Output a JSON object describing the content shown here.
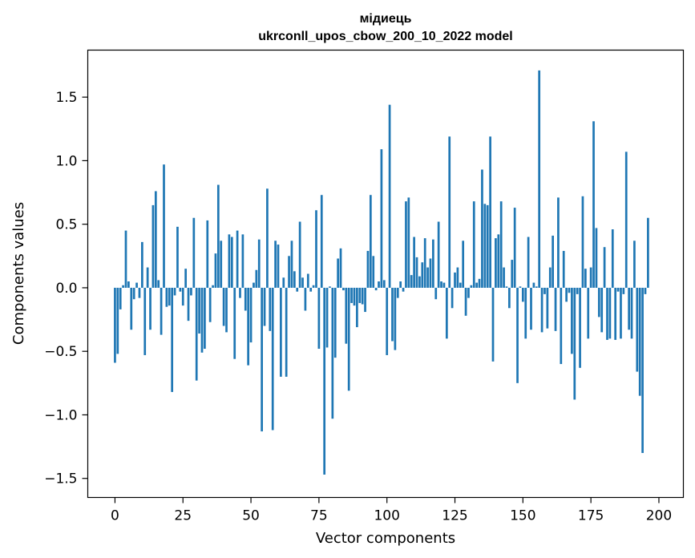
{
  "chart_data": {
    "type": "bar",
    "title": "мідиець",
    "subtitle": "ukrconll_upos_cbow_200_10_2022 model",
    "xlabel": "Vector components",
    "ylabel": "Components values",
    "xlim": [
      -10,
      209
    ],
    "ylim": [
      -1.65,
      1.87
    ],
    "xticks": [
      0,
      25,
      50,
      75,
      100,
      125,
      150,
      175,
      200
    ],
    "yticks": [
      -1.5,
      -1.0,
      -0.5,
      0.0,
      0.5,
      1.0,
      1.5
    ],
    "ytick_labels": [
      "−1.5",
      "−1.0",
      "−0.5",
      "0.0",
      "0.5",
      "1.0",
      "1.5"
    ],
    "bar_color": "#1f77b4",
    "values": [
      -0.59,
      -0.52,
      -0.17,
      0.02,
      0.45,
      0.05,
      -0.33,
      -0.09,
      0.04,
      -0.08,
      0.36,
      -0.53,
      0.16,
      -0.33,
      0.65,
      0.76,
      0.06,
      -0.37,
      0.97,
      -0.15,
      -0.14,
      -0.82,
      -0.06,
      0.48,
      -0.03,
      -0.14,
      0.15,
      -0.26,
      -0.06,
      0.55,
      -0.73,
      -0.36,
      -0.51,
      -0.48,
      0.53,
      -0.27,
      0.02,
      0.27,
      0.81,
      0.37,
      -0.3,
      -0.35,
      0.42,
      0.4,
      -0.56,
      0.45,
      -0.08,
      0.42,
      -0.18,
      -0.61,
      -0.43,
      0.04,
      0.14,
      0.38,
      -1.13,
      -0.3,
      0.78,
      -0.34,
      -1.12,
      0.37,
      0.34,
      -0.7,
      0.08,
      -0.7,
      0.25,
      0.37,
      0.13,
      -0.03,
      0.52,
      0.08,
      -0.18,
      0.11,
      -0.03,
      0.02,
      0.61,
      -0.48,
      0.73,
      -1.47,
      -0.47,
      0.01,
      -1.03,
      -0.55,
      0.23,
      0.31,
      -0.02,
      -0.44,
      -0.81,
      -0.12,
      -0.14,
      -0.31,
      -0.12,
      -0.13,
      -0.19,
      0.29,
      0.73,
      0.25,
      -0.02,
      0.05,
      1.09,
      0.06,
      -0.53,
      1.44,
      -0.42,
      -0.49,
      -0.08,
      0.05,
      -0.03,
      0.68,
      0.71,
      0.1,
      0.4,
      0.24,
      0.09,
      0.2,
      0.39,
      0.16,
      0.23,
      0.38,
      -0.09,
      0.52,
      0.05,
      0.04,
      -0.4,
      1.19,
      -0.16,
      0.12,
      0.16,
      0.04,
      0.37,
      -0.22,
      -0.08,
      0.02,
      0.68,
      0.04,
      0.07,
      0.93,
      0.66,
      0.65,
      1.19,
      -0.58,
      0.39,
      0.42,
      0.68,
      0.16,
      0.01,
      -0.16,
      0.22,
      0.63,
      -0.75,
      0.01,
      -0.11,
      -0.4,
      0.4,
      -0.33,
      0.04,
      0.01,
      1.71,
      -0.35,
      -0.05,
      -0.32,
      0.16,
      0.41,
      -0.34,
      0.71,
      -0.6,
      0.29,
      -0.11,
      -0.04,
      -0.52,
      -0.88,
      -0.05,
      -0.63,
      0.72,
      0.15,
      -0.4,
      0.16,
      1.31,
      0.47,
      -0.23,
      -0.35,
      0.32,
      -0.41,
      -0.4,
      0.46,
      -0.41,
      -0.03,
      -0.4,
      -0.05,
      1.07,
      -0.33,
      -0.4,
      0.37,
      -0.66,
      -0.85,
      -1.3,
      -0.05,
      0.55
    ]
  }
}
